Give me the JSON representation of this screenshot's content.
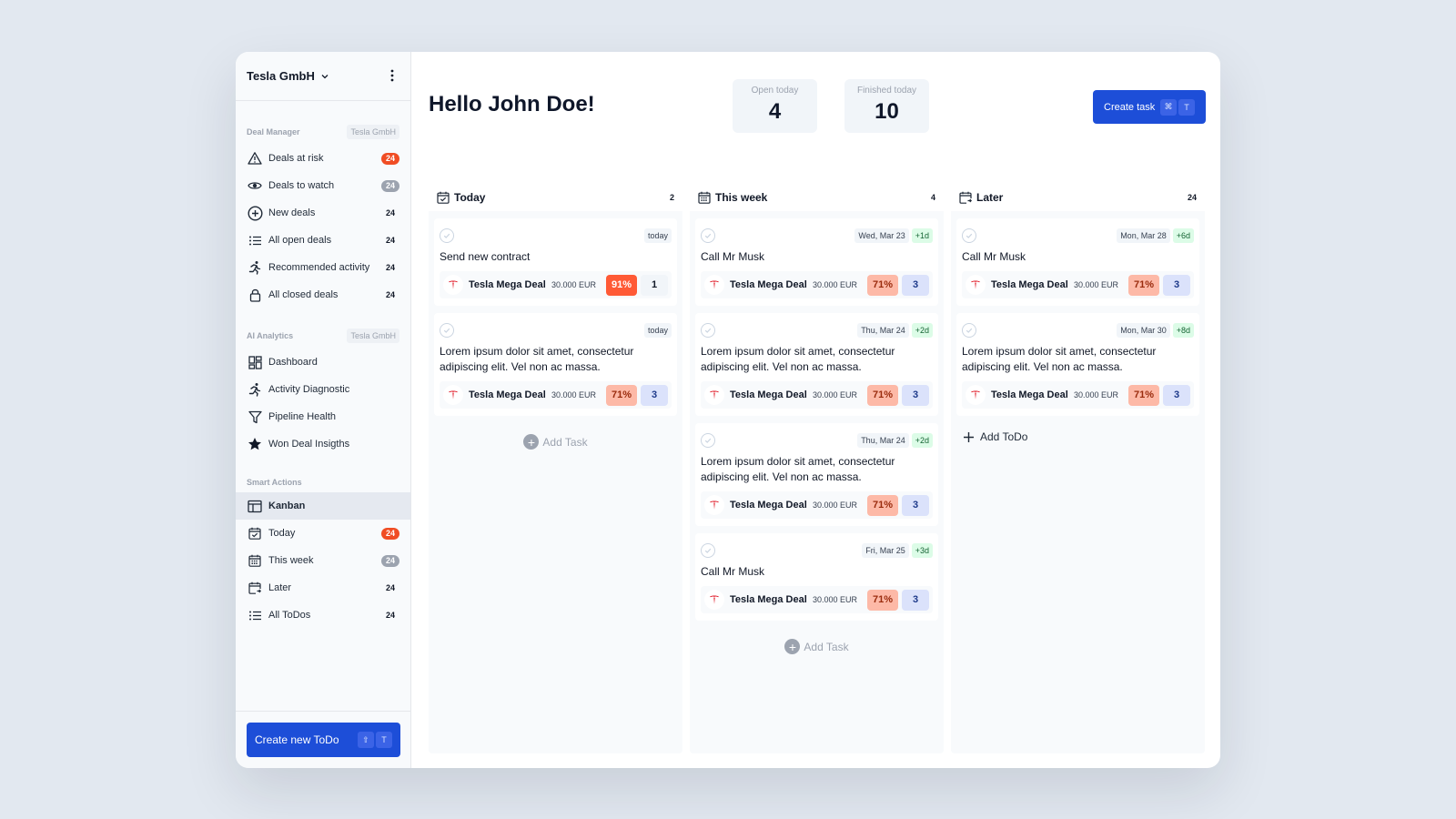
{
  "workspace": {
    "name": "Tesla GmbH"
  },
  "sidebar": {
    "sections": [
      {
        "title": "Deal Manager",
        "tag": "Tesla GmbH",
        "items": [
          {
            "label": "Deals at risk",
            "count": "24",
            "icon": "warning-icon",
            "badge": "red"
          },
          {
            "label": "Deals to watch",
            "count": "24",
            "icon": "eye-icon",
            "badge": "grey"
          },
          {
            "label": "New deals",
            "count": "24",
            "icon": "plus-circle-icon",
            "badge": "none"
          },
          {
            "label": "All open deals",
            "count": "24",
            "icon": "list-icon",
            "badge": "none"
          },
          {
            "label": "Recommended activity",
            "count": "24",
            "icon": "runner-icon",
            "badge": "none"
          },
          {
            "label": "All closed deals",
            "count": "24",
            "icon": "lock-icon",
            "badge": "none"
          }
        ]
      },
      {
        "title": "AI Analytics",
        "tag": "Tesla GmbH",
        "items": [
          {
            "label": "Dashboard",
            "icon": "dashboard-icon"
          },
          {
            "label": "Activity Diagnostic",
            "icon": "runner-icon"
          },
          {
            "label": "Pipeline Health",
            "icon": "funnel-icon"
          },
          {
            "label": "Won Deal Insigths",
            "icon": "star-icon"
          }
        ]
      },
      {
        "title": "Smart Actions",
        "tag": "",
        "items": [
          {
            "label": "Kanban",
            "icon": "kanban-icon",
            "active": true
          },
          {
            "label": "Today",
            "count": "24",
            "icon": "calendar-check-icon",
            "badge": "red"
          },
          {
            "label": "This week",
            "count": "24",
            "icon": "calendar-week-icon",
            "badge": "grey"
          },
          {
            "label": "Later",
            "count": "24",
            "icon": "calendar-later-icon",
            "badge": "none"
          },
          {
            "label": "All ToDos",
            "count": "24",
            "icon": "list-icon",
            "badge": "none"
          }
        ]
      }
    ],
    "create_button": {
      "label": "Create new ToDo",
      "keys": [
        "⇧",
        "T"
      ]
    }
  },
  "header": {
    "greeting": "Hello John Doe!",
    "stats": [
      {
        "label": "Open today",
        "value": "4"
      },
      {
        "label": "Finished today",
        "value": "10"
      }
    ],
    "create_button": {
      "label": "Create task",
      "keys": [
        "⌘",
        "T"
      ]
    }
  },
  "columns": [
    {
      "title": "Today",
      "count": "2",
      "icon": "calendar-check-icon",
      "cards": [
        {
          "title": "Send new contract",
          "date": "today",
          "delta": "",
          "deal": "Tesla Mega Deal",
          "amount": "30.000 EUR",
          "probability": "91%",
          "hot": true,
          "count": "1",
          "count_style": "plain"
        },
        {
          "title": "Lorem ipsum dolor sit amet, consectetur adipiscing elit. Vel non ac massa.",
          "date": "today",
          "delta": "",
          "deal": "Tesla Mega Deal",
          "amount": "30.000 EUR",
          "probability": "71%",
          "hot": false,
          "count": "3",
          "count_style": "blue"
        }
      ],
      "footer": {
        "type": "add-task",
        "label": "Add Task"
      }
    },
    {
      "title": "This week",
      "count": "4",
      "icon": "calendar-week-icon",
      "cards": [
        {
          "title": "Call Mr Musk",
          "date": "Wed, Mar 23",
          "delta": "+1d",
          "deal": "Tesla Mega Deal",
          "amount": "30.000 EUR",
          "probability": "71%",
          "hot": false,
          "count": "3",
          "count_style": "blue"
        },
        {
          "title": "Lorem ipsum dolor sit amet, consectetur adipiscing elit. Vel non ac massa.",
          "date": "Thu, Mar 24",
          "delta": "+2d",
          "deal": "Tesla Mega Deal",
          "amount": "30.000 EUR",
          "probability": "71%",
          "hot": false,
          "count": "3",
          "count_style": "blue"
        },
        {
          "title": "Lorem ipsum dolor sit amet, consectetur adipiscing elit. Vel non ac massa.",
          "date": "Thu, Mar 24",
          "delta": "+2d",
          "deal": "Tesla Mega Deal",
          "amount": "30.000 EUR",
          "probability": "71%",
          "hot": false,
          "count": "3",
          "count_style": "blue"
        },
        {
          "title": "Call Mr Musk",
          "date": "Fri, Mar 25",
          "delta": "+3d",
          "deal": "Tesla Mega Deal",
          "amount": "30.000 EUR",
          "probability": "71%",
          "hot": false,
          "count": "3",
          "count_style": "blue"
        }
      ],
      "footer": {
        "type": "add-task",
        "label": "Add Task"
      }
    },
    {
      "title": "Later",
      "count": "24",
      "icon": "calendar-later-icon",
      "cards": [
        {
          "title": "Call Mr Musk",
          "date": "Mon, Mar 28",
          "delta": "+6d",
          "deal": "Tesla Mega Deal",
          "amount": "30.000 EUR",
          "probability": "71%",
          "hot": false,
          "count": "3",
          "count_style": "blue"
        },
        {
          "title": "Lorem ipsum dolor sit amet, consectetur adipiscing elit. Vel non ac massa.",
          "date": "Mon, Mar 30",
          "delta": "+8d",
          "deal": "Tesla Mega Deal",
          "amount": "30.000 EUR",
          "probability": "71%",
          "hot": false,
          "count": "3",
          "count_style": "blue"
        }
      ],
      "footer": {
        "type": "add-todo",
        "label": "Add ToDo"
      }
    }
  ],
  "colors": {
    "primary": "#1d4ed8",
    "badge_red": "#f04d24",
    "badge_grey": "#9ca3af",
    "hot": "#ff5a36",
    "warm": "#fdb9a7",
    "delta_bg": "#dcfce7"
  }
}
